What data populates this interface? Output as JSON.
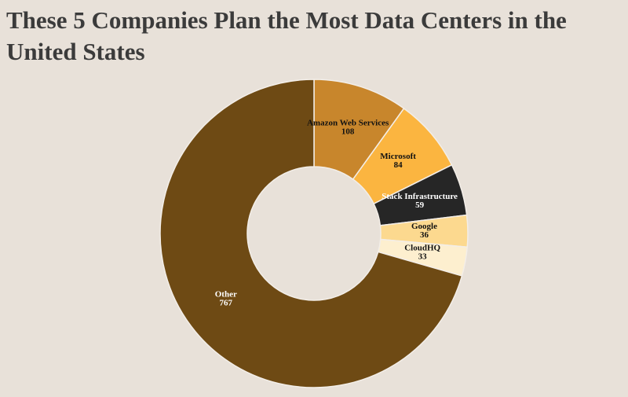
{
  "chart_data": {
    "type": "donut",
    "title": "These 5 Companies Plan the Most Data Centers in the United States",
    "categories": [
      "Amazon Web Services",
      "Microsoft",
      "Stack Infrastructure",
      "Google",
      "CloudHQ",
      "Other"
    ],
    "values": [
      108,
      84,
      59,
      36,
      33,
      767
    ],
    "colors": [
      "#c8862c",
      "#fbb540",
      "#262626",
      "#fcd98f",
      "#fdefcf",
      "#6e4a14"
    ]
  }
}
